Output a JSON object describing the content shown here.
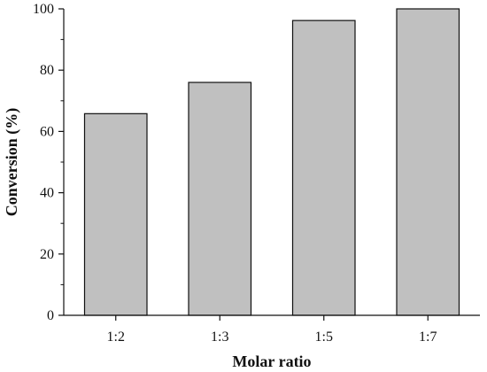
{
  "chart_data": {
    "type": "bar",
    "title": "",
    "xlabel": "Molar ratio",
    "ylabel": "Conversion (%)",
    "categories": [
      "1:2",
      "1:3",
      "1:5",
      "1:7"
    ],
    "values": [
      65.8,
      76.0,
      96.2,
      100.0
    ],
    "ylim": [
      0,
      100
    ],
    "y_ticks": [
      0,
      20,
      40,
      60,
      80,
      100
    ],
    "grid": false,
    "legend": "none",
    "colors": {
      "bar_fill": "#c0c0c0",
      "bar_stroke": "#111111",
      "axis": "#111111"
    }
  }
}
